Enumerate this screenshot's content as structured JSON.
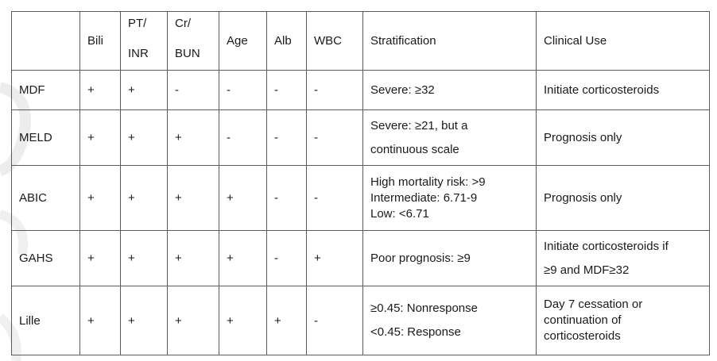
{
  "header": [
    "",
    [
      "Bili"
    ],
    [
      "PT/",
      "INR"
    ],
    [
      "Cr/",
      "BUN"
    ],
    [
      "Age"
    ],
    [
      "Alb"
    ],
    [
      "WBC"
    ],
    [
      "Stratification"
    ],
    [
      "Clinical Use"
    ]
  ],
  "rows": [
    {
      "name": "MDF",
      "marks": [
        "+",
        "+",
        "-",
        "-",
        "-",
        "-"
      ],
      "strat": [
        "Severe: ≥32"
      ],
      "use": [
        "Initiate corticosteroids"
      ]
    },
    {
      "name": "MELD",
      "marks": [
        "+",
        "+",
        "+",
        "-",
        "-",
        "-"
      ],
      "strat": [
        "Severe: ≥21, but a",
        "continuous scale"
      ],
      "use": [
        "Prognosis only"
      ]
    },
    {
      "name": "ABIC",
      "marks": [
        "+",
        "+",
        "+",
        "+",
        "-",
        "-"
      ],
      "strat": [
        "High mortality risk: >9",
        "Intermediate: 6.71-9",
        "Low: <6.71"
      ],
      "use": [
        "Prognosis only"
      ]
    },
    {
      "name": "GAHS",
      "marks": [
        "+",
        "+",
        "+",
        "+",
        "-",
        "+"
      ],
      "strat": [
        "Poor prognosis: ≥9"
      ],
      "use": [
        "Initiate corticosteroids if",
        "≥9 and MDF≥32"
      ]
    },
    {
      "name": "Lille",
      "marks": [
        "+",
        "+",
        "+",
        "+",
        "+",
        "-"
      ],
      "strat": [
        "≥0.45: Nonresponse",
        "<0.45: Response"
      ],
      "use": [
        "Day 7 cessation or",
        "continuation of",
        "corticosteroids"
      ]
    }
  ]
}
